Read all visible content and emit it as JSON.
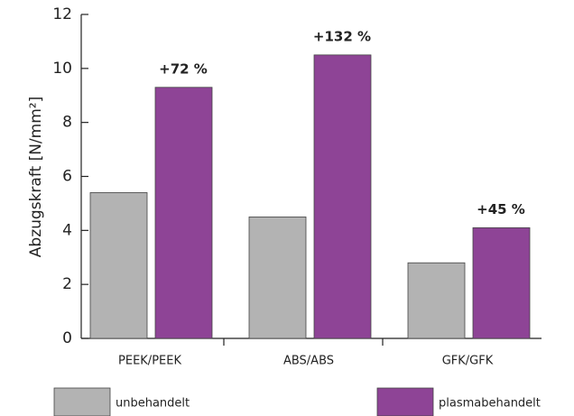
{
  "chart_data": {
    "type": "bar",
    "y_label": "Abzugskraft [N/mm²]",
    "categories": [
      "PEEK/PEEK",
      "ABS/ABS",
      "GFK/GFK"
    ],
    "series": [
      {
        "name": "unbehandelt",
        "color": "#b3b3b3",
        "values": [
          5.4,
          4.5,
          2.8
        ]
      },
      {
        "name": "plasmabehandelt",
        "color": "#8e4496",
        "values": [
          9.3,
          10.5,
          4.1
        ]
      }
    ],
    "annotations": [
      "+72 %",
      "+132 %",
      "+45 %"
    ],
    "ylim": [
      0,
      12
    ],
    "yticks": [
      0,
      2,
      4,
      6,
      8,
      10,
      12
    ]
  }
}
